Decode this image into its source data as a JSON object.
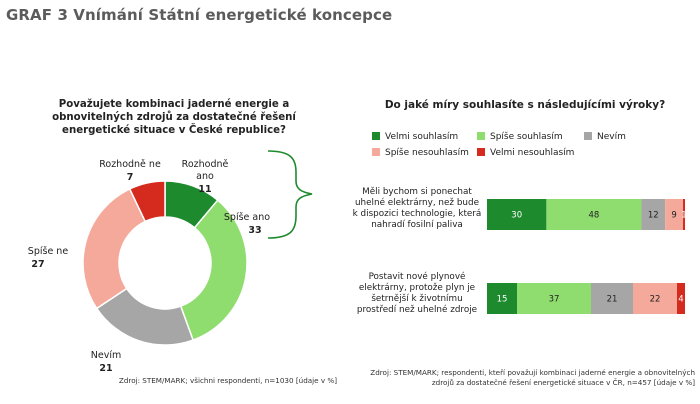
{
  "title": "GRAF 3 Vnímání Státní energetické koncepce",
  "chart_data": [
    {
      "type": "pie",
      "variant": "donut",
      "title": "Považujete kombinaci jaderné energie a obnovitelných zdrojů za dostatečné řešení energetické situace v České republice?",
      "slices": [
        {
          "label": "Rozhodně ano",
          "value": 11,
          "color": "#1e8a2e"
        },
        {
          "label": "Spíše ano",
          "value": 33,
          "color": "#8fdc6f"
        },
        {
          "label": "Nevím",
          "value": 21,
          "color": "#a6a6a6"
        },
        {
          "label": "Spíše ne",
          "value": 27,
          "color": "#f4a99a"
        },
        {
          "label": "Rozhodně ne",
          "value": 7,
          "color": "#d42b1e"
        }
      ],
      "source": "Zdroj: STEM/MARK; všichni respondenti, n=1030 [údaje v %]"
    },
    {
      "type": "bar",
      "variant": "stacked-horizontal-100",
      "title": "Do jaké míry souhlasíte s následujícími výroky?",
      "legend": [
        "Velmi souhlasím",
        "Spíše souhlasím",
        "Nevím",
        "Spíše nesouhlasím",
        "Velmi nesouhlasím"
      ],
      "colors": [
        "#1e8a2e",
        "#8fdc6f",
        "#a6a6a6",
        "#f4a99a",
        "#d42b1e"
      ],
      "categories": [
        "Měli bychom si ponechat uhelné elektrárny, než bude k dispozici technologie, která nahradí fosilní paliva",
        "Postavit nové plynové elektrárny, protože plyn je šetrnější k životnímu prostředí než uhelné zdroje"
      ],
      "series": [
        {
          "name": "Velmi souhlasím",
          "values": [
            30,
            15
          ]
        },
        {
          "name": "Spíše souhlasím",
          "values": [
            48,
            37
          ]
        },
        {
          "name": "Nevím",
          "values": [
            12,
            21
          ]
        },
        {
          "name": "Spíše nesouhlasím",
          "values": [
            9,
            22
          ]
        },
        {
          "name": "Velmi nesouhlasím",
          "values": [
            1,
            4
          ]
        }
      ],
      "data_labels": [
        [
          "30",
          "48",
          "12",
          "9",
          "1"
        ],
        [
          "15",
          "37",
          "21",
          "22",
          "4"
        ]
      ],
      "source_line1": "Zdroj: STEM/MARK; respondenti, kteří považují kombinaci jaderné energie a obnovitelných",
      "source_line2": "zdrojů za dostatečné řešení energetické situace v ČR, n=457 [údaje v %]"
    }
  ]
}
